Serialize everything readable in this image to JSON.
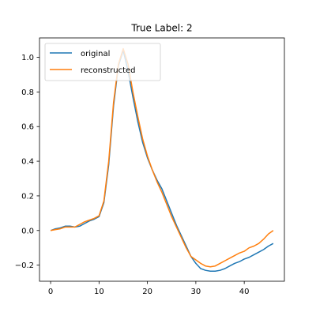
{
  "chart_data": {
    "type": "line",
    "title": "True Label: 2",
    "xlabel": "",
    "ylabel": "",
    "xlim": [
      -2.3,
      48.3
    ],
    "ylim": [
      -0.293,
      1.112
    ],
    "xticks": [
      0,
      10,
      20,
      30,
      40
    ],
    "yticks": [
      -0.2,
      0.0,
      0.2,
      0.4,
      0.6,
      0.8,
      1.0
    ],
    "xtick_labels": [
      "0",
      "10",
      "20",
      "30",
      "40"
    ],
    "ytick_labels": [
      "−0.2",
      "0.0",
      "0.2",
      "0.4",
      "0.6",
      "0.8",
      "1.0"
    ],
    "grid": false,
    "legend_position": "upper-left",
    "series": [
      {
        "name": "original",
        "color": "#1f77b4",
        "x": [
          0,
          1,
          2,
          3,
          4,
          5,
          6,
          7,
          8,
          9,
          10,
          11,
          12,
          13,
          14,
          15,
          16,
          17,
          18,
          19,
          20,
          21,
          22,
          23,
          24,
          25,
          26,
          27,
          28,
          29,
          30,
          31,
          32,
          33,
          34,
          35,
          36,
          37,
          38,
          39,
          40,
          41,
          42,
          43,
          44,
          45,
          46
        ],
        "y": [
          0.0,
          0.01,
          0.015,
          0.025,
          0.025,
          0.02,
          0.025,
          0.04,
          0.055,
          0.065,
          0.08,
          0.16,
          0.38,
          0.72,
          0.95,
          1.04,
          0.92,
          0.77,
          0.63,
          0.51,
          0.42,
          0.35,
          0.29,
          0.24,
          0.17,
          0.1,
          0.03,
          -0.03,
          -0.09,
          -0.15,
          -0.19,
          -0.22,
          -0.23,
          -0.235,
          -0.235,
          -0.23,
          -0.22,
          -0.205,
          -0.19,
          -0.18,
          -0.165,
          -0.155,
          -0.14,
          -0.125,
          -0.11,
          -0.09,
          -0.075
        ]
      },
      {
        "name": "reconstructed",
        "color": "#ff7f0e",
        "x": [
          0,
          1,
          2,
          3,
          4,
          5,
          6,
          7,
          8,
          9,
          10,
          11,
          12,
          13,
          14,
          15,
          16,
          17,
          18,
          19,
          20,
          21,
          22,
          23,
          24,
          25,
          26,
          27,
          28,
          29,
          30,
          31,
          32,
          33,
          34,
          35,
          36,
          37,
          38,
          39,
          40,
          41,
          42,
          43,
          44,
          45,
          46
        ],
        "y": [
          0.0,
          0.005,
          0.01,
          0.02,
          0.02,
          0.02,
          0.035,
          0.05,
          0.06,
          0.07,
          0.085,
          0.17,
          0.4,
          0.74,
          0.96,
          1.05,
          0.96,
          0.8,
          0.66,
          0.53,
          0.43,
          0.35,
          0.28,
          0.22,
          0.15,
          0.08,
          0.02,
          -0.04,
          -0.1,
          -0.15,
          -0.17,
          -0.19,
          -0.205,
          -0.21,
          -0.205,
          -0.19,
          -0.175,
          -0.16,
          -0.145,
          -0.13,
          -0.12,
          -0.1,
          -0.09,
          -0.075,
          -0.05,
          -0.02,
          0.0
        ]
      }
    ]
  }
}
